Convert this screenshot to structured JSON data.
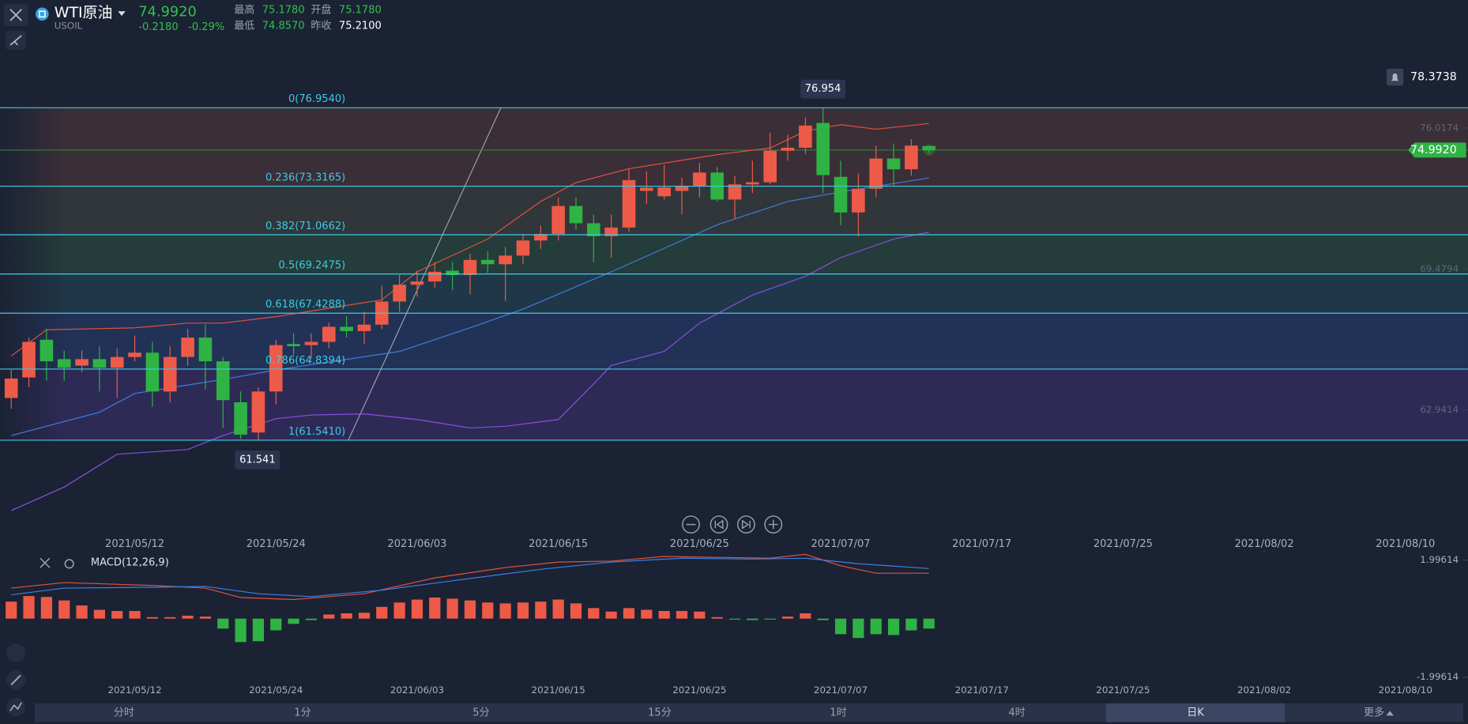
{
  "header": {
    "symbol": "WTI原油",
    "code": "USOIL",
    "price": "74.9920",
    "change": "-0.2180",
    "change_pct": "-0.29%",
    "stats": [
      {
        "label": "最高",
        "value": "75.1780"
      },
      {
        "label": "开盘",
        "value": "75.1780"
      },
      {
        "label": "最低",
        "value": "74.8570"
      },
      {
        "label": "昨收",
        "value": "75.2100"
      }
    ]
  },
  "chart_data": [
    {
      "type": "candlestick",
      "up_color": "#ee5a48",
      "down_color": "#2fb344",
      "open": [
        63.5,
        64.45,
        66.2,
        65.3,
        65.0,
        65.3,
        64.9,
        65.4,
        65.6,
        63.8,
        65.4,
        66.3,
        65.2,
        63.3,
        61.9,
        63.8,
        66.0,
        65.95,
        66.1,
        66.8,
        66.6,
        66.9,
        67.97,
        68.75,
        68.9,
        69.4,
        69.2,
        69.9,
        69.7,
        70.1,
        70.8,
        71.1,
        72.4,
        71.6,
        71.0,
        71.4,
        73.1,
        72.85,
        73.1,
        73.3,
        73.95,
        72.7,
        73.4,
        73.5,
        74.96,
        75.1,
        76.25,
        73.75,
        72.1,
        73.2,
        74.6,
        74.1,
        75.178
      ],
      "high": [
        64.8,
        66.3,
        66.7,
        65.7,
        65.7,
        65.9,
        65.8,
        66.4,
        66.1,
        65.9,
        66.7,
        66.9,
        65.4,
        63.8,
        64.0,
        66.2,
        66.5,
        66.5,
        67.0,
        67.3,
        67.5,
        68.7,
        69.2,
        69.4,
        69.8,
        69.8,
        70.2,
        70.3,
        70.5,
        71.1,
        71.5,
        72.8,
        72.8,
        72.0,
        72.0,
        74.1,
        74.0,
        74.3,
        73.7,
        74.4,
        74.2,
        73.8,
        74.5,
        75.8,
        75.7,
        76.5,
        76.954,
        74.5,
        73.9,
        75.2,
        75.3,
        75.5,
        75.178
      ],
      "low": [
        63.0,
        64.0,
        64.3,
        64.3,
        64.7,
        63.8,
        63.5,
        65.2,
        63.1,
        63.3,
        65.0,
        63.9,
        62.1,
        61.6,
        61.541,
        63.2,
        65.5,
        65.3,
        65.8,
        66.3,
        66.0,
        66.7,
        67.5,
        68.2,
        68.6,
        68.5,
        68.3,
        69.3,
        68.0,
        69.7,
        70.4,
        70.8,
        71.3,
        69.8,
        70.0,
        71.2,
        72.5,
        72.7,
        72.0,
        72.8,
        72.6,
        71.8,
        73.0,
        73.4,
        74.5,
        74.8,
        73.0,
        71.5,
        71.0,
        72.8,
        73.3,
        73.8,
        74.857
      ],
      "close": [
        64.4,
        66.1,
        65.2,
        64.9,
        65.3,
        64.9,
        65.4,
        65.6,
        63.8,
        65.4,
        66.3,
        65.2,
        63.4,
        61.8,
        63.8,
        65.95,
        65.9,
        66.1,
        66.8,
        66.6,
        66.9,
        67.97,
        68.75,
        68.9,
        69.35,
        69.2,
        69.9,
        69.7,
        70.1,
        70.8,
        71.1,
        72.4,
        71.6,
        71.0,
        71.4,
        73.6,
        73.25,
        73.26,
        73.3,
        73.95,
        72.7,
        73.4,
        73.5,
        74.96,
        75.1,
        76.13,
        73.83,
        72.1,
        73.2,
        74.6,
        74.1,
        75.2,
        74.992
      ],
      "lines": [
        {
          "color": "#e0523f",
          "x": [
            0,
            2,
            7,
            10,
            12,
            15,
            21,
            23,
            27,
            30,
            32,
            35,
            40,
            43,
            45,
            47,
            49,
            52
          ],
          "values": [
            65.45,
            66.66,
            66.75,
            66.97,
            66.97,
            67.27,
            68.05,
            69.35,
            70.87,
            72.61,
            73.48,
            74.13,
            74.78,
            75.09,
            75.87,
            76.17,
            75.96,
            76.22
          ]
        },
        {
          "color": "#3f7fe0",
          "x": [
            0,
            5,
            7,
            12,
            15,
            22,
            26,
            29,
            34,
            40,
            44,
            47,
            52
          ],
          "values": [
            61.76,
            62.84,
            63.71,
            64.36,
            64.8,
            65.66,
            66.75,
            67.62,
            69.35,
            71.53,
            72.61,
            73.05,
            73.7
          ]
        },
        {
          "color": "#8a4fe0",
          "x": [
            0,
            3,
            6,
            10,
            12,
            15,
            17,
            20,
            23,
            26,
            28,
            31,
            33,
            34,
            37,
            39,
            42,
            45,
            47,
            50,
            52
          ],
          "values": [
            58.28,
            59.37,
            60.89,
            61.11,
            61.76,
            62.54,
            62.71,
            62.76,
            62.5,
            62.11,
            62.19,
            62.5,
            64.15,
            65.01,
            65.66,
            66.97,
            68.27,
            69.14,
            70.01,
            70.87,
            71.18
          ]
        }
      ],
      "ylim": [
        57.2,
        81.08
      ],
      "yticks": [
        76.0174,
        69.4794,
        62.9414
      ],
      "fib": [
        {
          "value": 76.954,
          "label": "0(76.9540)"
        },
        {
          "value": 73.3165,
          "label": "0.236(73.3165)"
        },
        {
          "value": 71.0662,
          "label": "0.382(71.0662)"
        },
        {
          "value": 69.2475,
          "label": "0.5(69.2475)"
        },
        {
          "value": 67.4288,
          "label": "0.618(67.4288)"
        },
        {
          "value": 64.8394,
          "label": "0.786(64.8394)"
        },
        {
          "value": 61.541,
          "label": "1(61.5410)"
        }
      ],
      "fib_color": "#3ccbe6",
      "band_colors": [
        "#3a2e37",
        "#30363a",
        "#243c3a",
        "#1f3748",
        "#223156",
        "#2e2a56"
      ],
      "max_tag": 76.954,
      "min_tag": 61.541,
      "alert": 78.3738,
      "last": {
        "value": 74.992,
        "label": "74.9920"
      },
      "xticks": [
        {
          "value": 7,
          "label": "2021/05/12"
        },
        {
          "value": 15,
          "label": "2021/05/24"
        },
        {
          "value": 23,
          "label": "2021/06/03"
        },
        {
          "value": 31,
          "label": "2021/06/15"
        },
        {
          "value": 39,
          "label": "2021/06/25"
        },
        {
          "value": 47,
          "label": "2021/07/07"
        },
        {
          "value": 55,
          "label": "2021/07/17"
        },
        {
          "value": 63,
          "label": "2021/07/25"
        },
        {
          "value": 71,
          "label": "2021/08/02"
        },
        {
          "value": 79,
          "label": "2021/08/10"
        }
      ]
    },
    {
      "type": "macd",
      "title": "MACD(12,26,9)",
      "up_color": "#ee5a48",
      "down_color": "#2fb344",
      "values": [
        0.58,
        0.77,
        0.74,
        0.62,
        0.45,
        0.3,
        0.26,
        0.26,
        0.05,
        0.05,
        0.1,
        0.07,
        -0.34,
        -0.8,
        -0.77,
        -0.4,
        -0.18,
        -0.05,
        0.14,
        0.18,
        0.2,
        0.4,
        0.55,
        0.65,
        0.72,
        0.68,
        0.62,
        0.55,
        0.52,
        0.55,
        0.58,
        0.65,
        0.52,
        0.36,
        0.24,
        0.36,
        0.3,
        0.26,
        0.26,
        0.24,
        0.05,
        -0.02,
        -0.05,
        -0.03,
        0.07,
        0.18,
        -0.05,
        -0.53,
        -0.66,
        -0.53,
        -0.56,
        -0.4,
        -0.34
      ],
      "lines": [
        {
          "color": "#e0523f",
          "x": [
            0,
            3,
            8,
            11,
            13,
            16,
            20,
            24,
            28,
            31,
            34,
            37,
            40,
            43,
            45,
            47,
            49,
            52
          ],
          "values": [
            1.04,
            1.23,
            1.13,
            1.04,
            0.72,
            0.65,
            0.85,
            1.39,
            1.74,
            1.93,
            1.96,
            2.12,
            2.09,
            2.06,
            2.19,
            1.8,
            1.55,
            1.55
          ]
        },
        {
          "color": "#3f7fe0",
          "x": [
            0,
            3,
            8,
            11,
            14,
            17,
            21,
            25,
            30,
            34,
            38,
            42,
            45,
            48,
            52
          ],
          "values": [
            0.81,
            1.04,
            1.07,
            1.1,
            0.85,
            0.75,
            0.97,
            1.29,
            1.68,
            1.93,
            2.06,
            2.03,
            2.06,
            1.87,
            1.71
          ]
        }
      ],
      "ylim": [
        -1.99614,
        1.99614
      ],
      "yticks": [
        1.99614,
        -1.99614
      ]
    }
  ],
  "toolbar": {
    "tabs": [
      "分时",
      "1分",
      "5分",
      "15分",
      "1时",
      "4时",
      "日K",
      "更多"
    ],
    "selected": 6
  }
}
